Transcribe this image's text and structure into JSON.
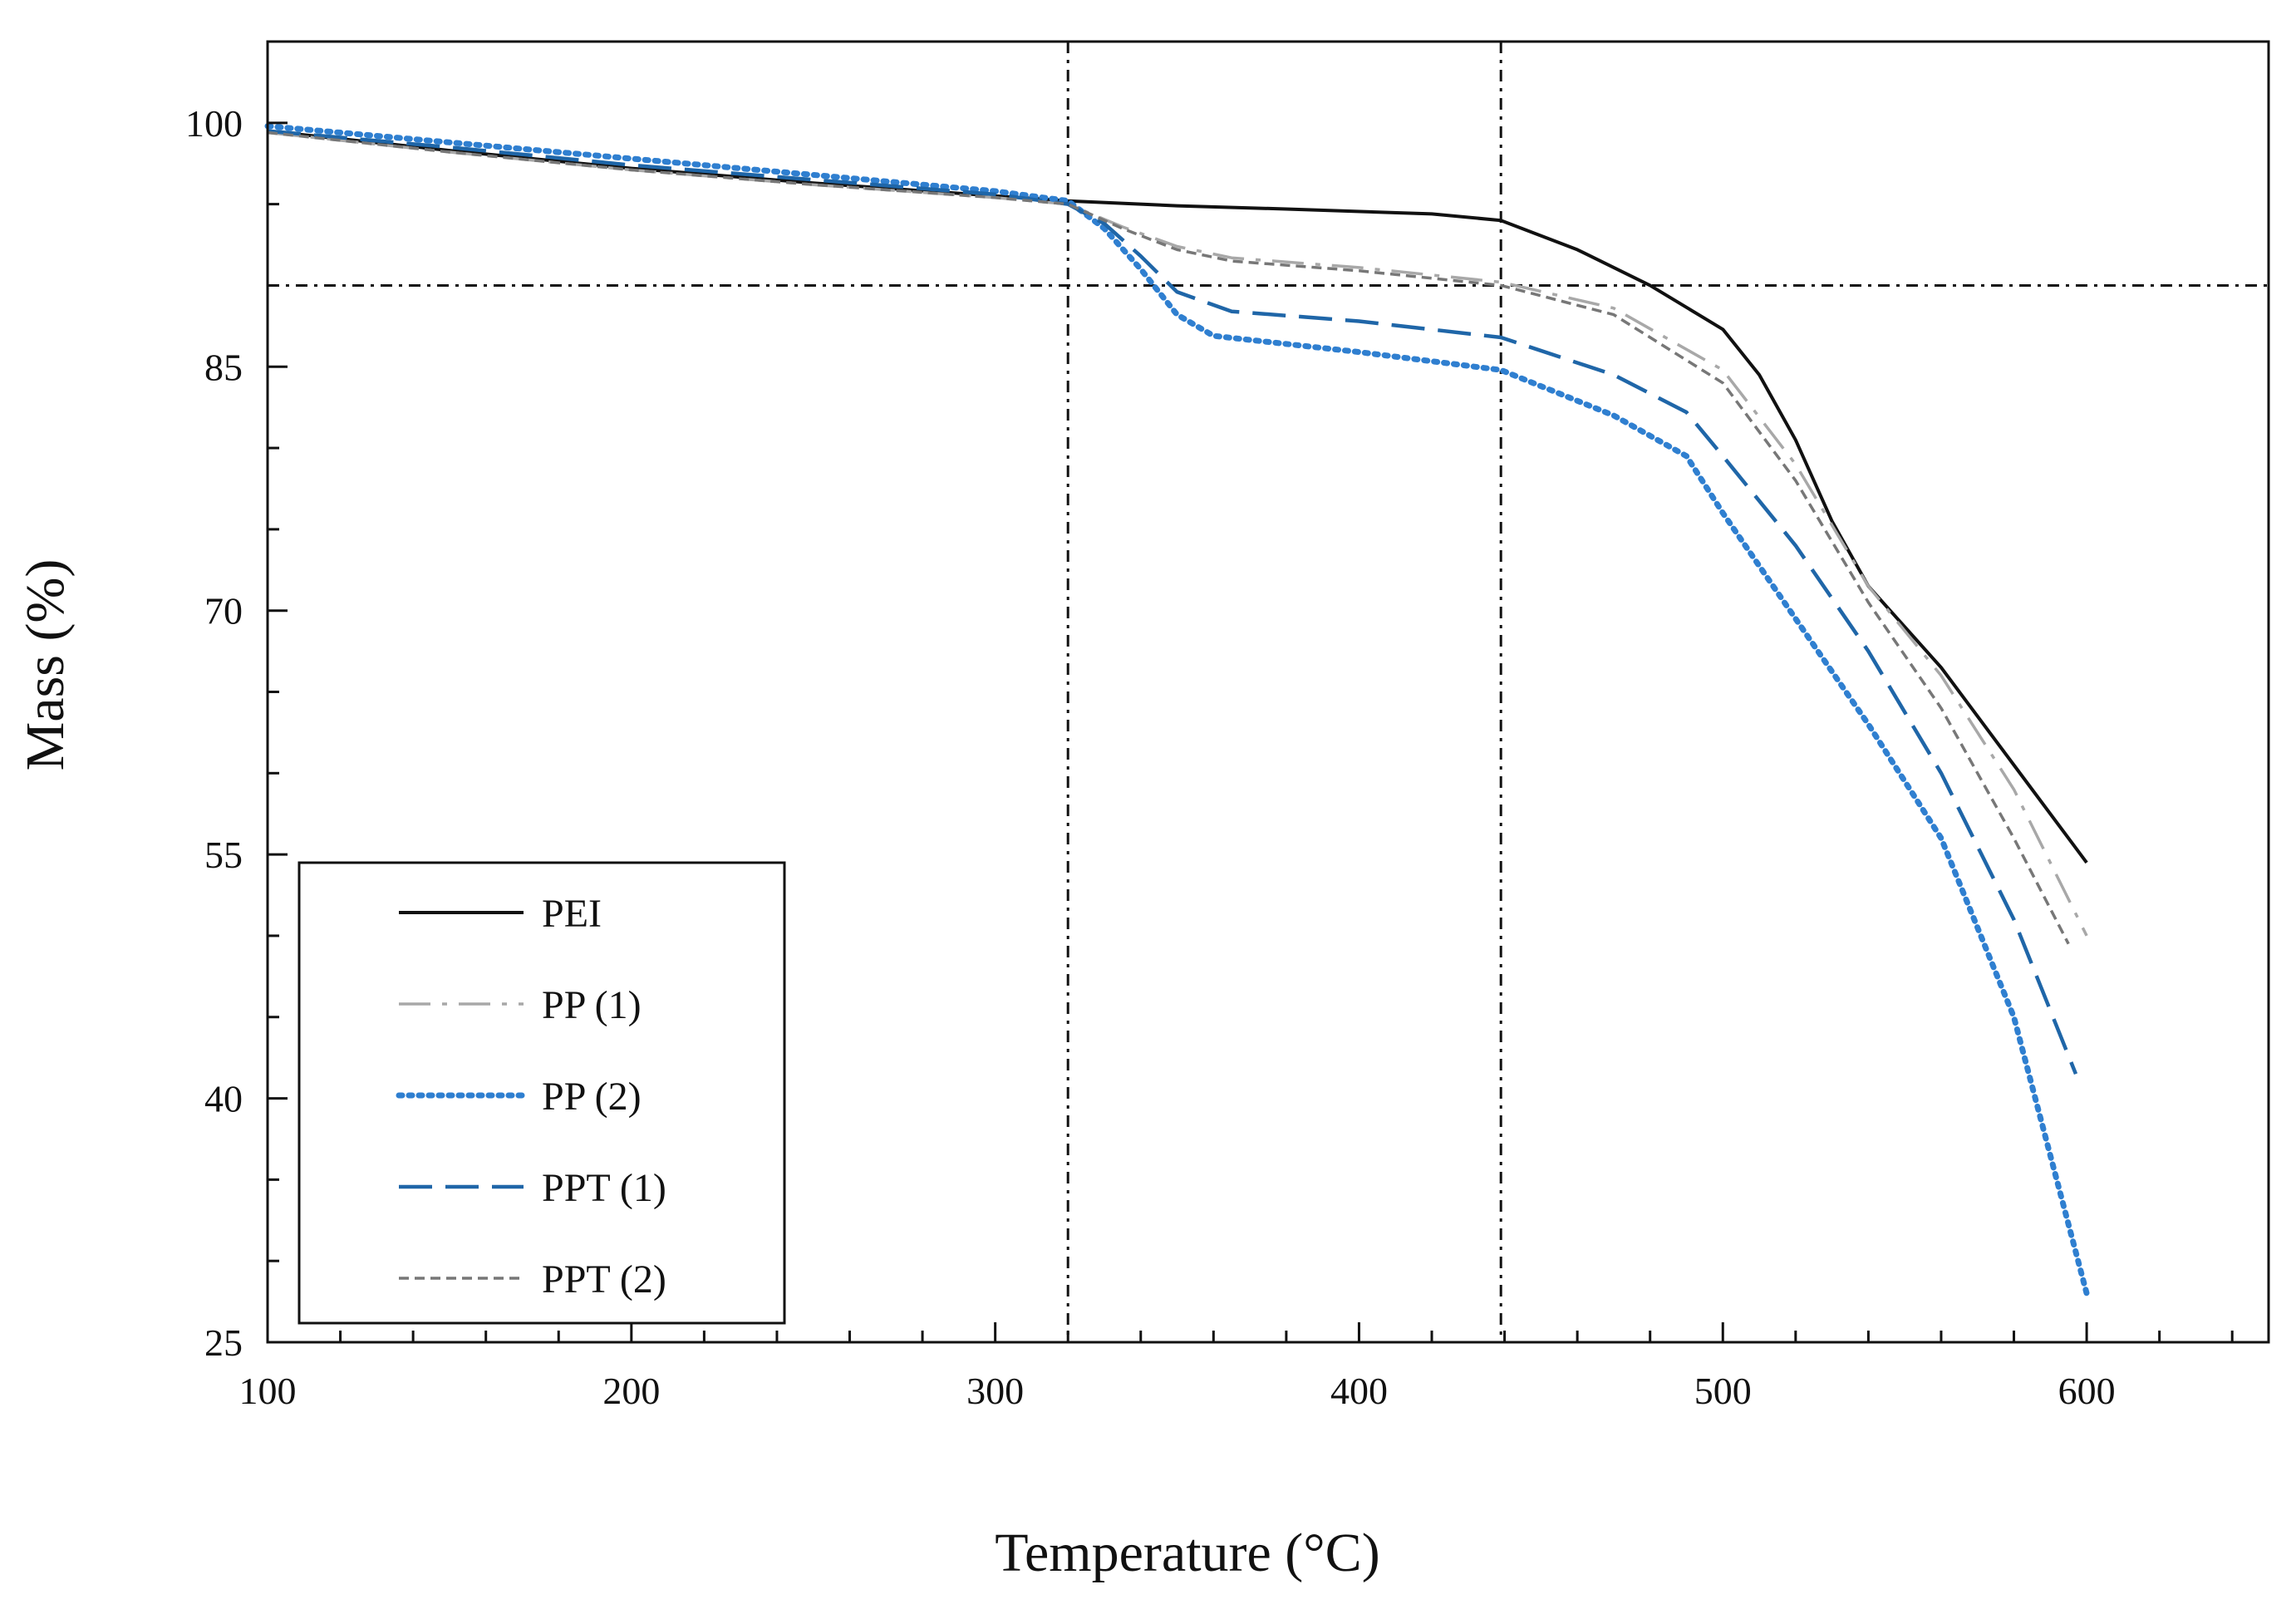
{
  "chart_data": {
    "type": "line",
    "title": "",
    "xlabel": "Temperature (°C)",
    "ylabel": "Mass (%)",
    "xlim": [
      100,
      650
    ],
    "ylim": [
      25,
      105
    ],
    "xticks": [
      100,
      200,
      300,
      400,
      500,
      600
    ],
    "yticks": [
      25,
      40,
      55,
      70,
      85,
      100
    ],
    "xtick_labels": [
      "100",
      "200",
      "300",
      "400",
      "500",
      "600"
    ],
    "ytick_labels": [
      "25",
      "40",
      "55",
      "70",
      "85",
      "100"
    ],
    "grid": false,
    "legend_position": "bottom-left",
    "reference_lines": [
      {
        "orientation": "vertical",
        "x": 320
      },
      {
        "orientation": "vertical",
        "x": 439
      },
      {
        "orientation": "horizontal",
        "y": 90
      }
    ],
    "series": [
      {
        "name": "PEI",
        "color": "#111111",
        "style": "solid",
        "x": [
          100,
          150,
          200,
          250,
          300,
          320,
          350,
          380,
          420,
          439,
          460,
          480,
          500,
          510,
          520,
          530,
          540,
          560,
          580,
          600
        ],
        "y": [
          99.5,
          98.3,
          97.2,
          96.3,
          95.5,
          95.2,
          94.9,
          94.7,
          94.4,
          94.0,
          92.2,
          90.0,
          87.3,
          84.5,
          80.5,
          75.5,
          71.5,
          66.5,
          60.5,
          54.5
        ]
      },
      {
        "name": "PP (1)",
        "color": "#a8a8a8",
        "style": "dashdot",
        "x": [
          100,
          150,
          200,
          250,
          300,
          320,
          335,
          350,
          365,
          400,
          439,
          470,
          500,
          520,
          540,
          560,
          580,
          600
        ],
        "y": [
          99.4,
          98.2,
          97.1,
          96.2,
          95.4,
          95.0,
          93.6,
          92.4,
          91.7,
          91.1,
          90.2,
          88.6,
          84.8,
          79.0,
          71.5,
          66.0,
          59.0,
          50.0
        ]
      },
      {
        "name": "PP (2)",
        "color": "#2f7fd0",
        "style": "dotted",
        "x": [
          100,
          150,
          200,
          250,
          300,
          320,
          330,
          340,
          350,
          360,
          400,
          439,
          470,
          490,
          500,
          520,
          540,
          560,
          580,
          600
        ],
        "y": [
          99.8,
          98.8,
          97.8,
          96.8,
          95.8,
          95.2,
          93.5,
          91.0,
          88.2,
          86.9,
          85.9,
          84.8,
          82.0,
          79.5,
          76.0,
          69.5,
          63.0,
          56.0,
          45.0,
          28.0
        ]
      },
      {
        "name": "PPT (1)",
        "color": "#1f66a8",
        "style": "dashed",
        "x": [
          100,
          150,
          200,
          250,
          300,
          320,
          330,
          340,
          350,
          365,
          400,
          439,
          470,
          490,
          500,
          520,
          540,
          560,
          580,
          597
        ],
        "y": [
          99.5,
          98.5,
          97.4,
          96.5,
          95.6,
          95.0,
          93.8,
          91.8,
          89.6,
          88.4,
          87.8,
          86.8,
          84.5,
          82.2,
          79.5,
          74.0,
          67.5,
          60.0,
          51.0,
          41.5
        ]
      },
      {
        "name": "PPT (2)",
        "color": "#777777",
        "style": "dashed-fine",
        "x": [
          100,
          150,
          200,
          250,
          300,
          320,
          335,
          350,
          365,
          400,
          439,
          470,
          500,
          520,
          540,
          560,
          580,
          595
        ],
        "y": [
          99.4,
          98.2,
          97.1,
          96.2,
          95.4,
          95.0,
          93.5,
          92.2,
          91.5,
          90.9,
          90.0,
          88.2,
          84.0,
          78.0,
          70.5,
          64.0,
          56.0,
          49.5
        ]
      }
    ]
  }
}
